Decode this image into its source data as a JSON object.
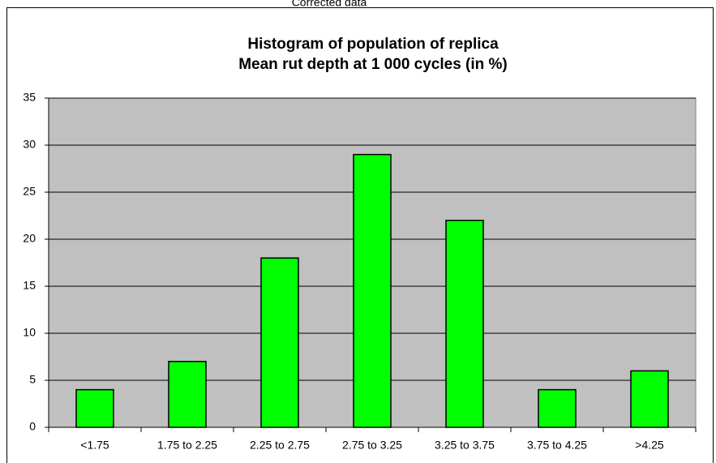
{
  "chart_data": {
    "type": "bar",
    "caption": "Corrected data",
    "title": [
      "Histogram of population of replica",
      "Mean rut depth at 1 000 cycles (in %)"
    ],
    "categories": [
      "<1.75",
      "1.75 to 2.25",
      "2.25 to 2.75",
      "2.75 to 3.25",
      "3.25 to 3.75",
      "3.75 to 4.25",
      ">4.25"
    ],
    "values": [
      4,
      7,
      18,
      29,
      22,
      4,
      6
    ],
    "color": "#00ff00",
    "plot_background": "#c0c0c0",
    "ylim": [
      0,
      35
    ],
    "yticks": [
      0,
      5,
      10,
      15,
      20,
      25,
      30,
      35
    ],
    "grid": true
  }
}
